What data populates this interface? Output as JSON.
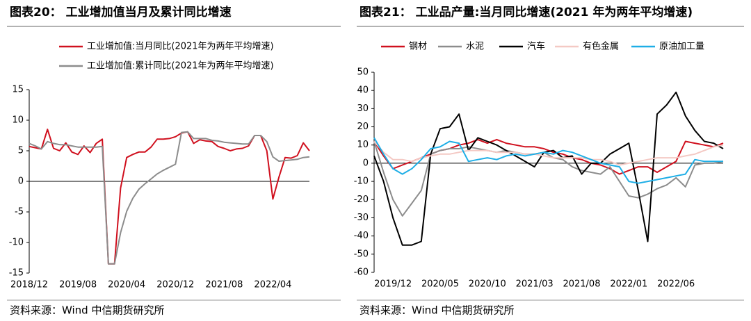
{
  "chart_data": [
    {
      "type": "line",
      "title": "图表20： 工业增加值当月及累计同比增速",
      "source": "资料来源：Wind 中信期货研究所",
      "legend": "top",
      "categories": [
        "2018/12",
        null,
        null,
        null,
        null,
        null,
        null,
        null,
        "2019/08",
        null,
        null,
        null,
        null,
        null,
        null,
        null,
        "2020/04",
        null,
        null,
        null,
        null,
        null,
        null,
        null,
        "2020/12",
        null,
        null,
        null,
        null,
        null,
        null,
        null,
        "2021/08",
        null,
        null,
        null,
        null,
        null,
        null,
        null,
        "2022/04",
        null,
        null,
        null,
        null,
        null,
        null
      ],
      "ylim": [
        -15,
        15
      ],
      "yticks": [
        -15,
        -10,
        -5,
        0,
        5,
        10,
        15
      ],
      "series": [
        {
          "name": "工业增加值:当月同比(2021年为两年平均增速)",
          "color": "#d0101e",
          "values": [
            5.7,
            5.5,
            5.3,
            8.5,
            5.4,
            5.0,
            6.3,
            4.8,
            4.4,
            5.8,
            4.7,
            6.2,
            6.9,
            -13.5,
            -13.5,
            -1.1,
            3.9,
            4.4,
            4.8,
            4.8,
            5.6,
            6.9,
            6.9,
            7.0,
            7.3,
            7.9,
            8.1,
            6.2,
            6.8,
            6.6,
            6.5,
            5.7,
            5.4,
            5.0,
            5.3,
            5.4,
            5.8,
            7.5,
            7.5,
            5.0,
            -2.9,
            0.7,
            3.9,
            3.8,
            4.2,
            6.3,
            5.0
          ]
        },
        {
          "name": "工业增加值:累计同比(2021年为两年平均增速)",
          "color": "#8c8c8c",
          "values": [
            6.2,
            5.8,
            5.3,
            6.5,
            6.2,
            6.0,
            6.0,
            5.8,
            5.6,
            5.6,
            5.6,
            5.6,
            5.7,
            -13.5,
            -13.5,
            -8.4,
            -4.9,
            -2.8,
            -1.3,
            -0.4,
            0.4,
            1.2,
            1.8,
            2.3,
            2.8,
            8.0,
            8.1,
            7.0,
            7.0,
            7.0,
            6.7,
            6.6,
            6.4,
            6.3,
            6.2,
            6.1,
            6.1,
            7.5,
            7.5,
            6.5,
            4.0,
            3.3,
            3.4,
            3.5,
            3.6,
            3.9,
            4.0
          ]
        }
      ]
    },
    {
      "type": "line",
      "title": "图表21： 工业品产量:当月同比增速(2021 年为两年平均增速)",
      "source": "资料来源：Wind 中信期货研究所",
      "legend": "top",
      "categories": [
        null,
        null,
        "2019/12",
        null,
        null,
        null,
        null,
        "2020/05",
        null,
        null,
        null,
        null,
        "2020/10",
        null,
        null,
        null,
        null,
        "2021/03",
        null,
        null,
        null,
        null,
        "2021/08",
        null,
        null,
        null,
        null,
        "2022/01",
        null,
        null,
        null,
        null,
        "2022/06",
        null,
        null,
        null,
        null,
        null
      ],
      "ylim": [
        -60,
        50
      ],
      "yticks": [
        -60,
        -50,
        -40,
        -30,
        -20,
        -10,
        0,
        10,
        20,
        30,
        40,
        50
      ],
      "series": [
        {
          "name": "钢材",
          "color": "#d0101e",
          "values": [
            12,
            4,
            -3,
            -1,
            1,
            3,
            5,
            7,
            8,
            10,
            11,
            13,
            11,
            13,
            11,
            10,
            9,
            9,
            8,
            6,
            5,
            3,
            2,
            0,
            -1,
            -3,
            -6,
            -4,
            -2,
            -2,
            -5,
            -2,
            1,
            12,
            11,
            10,
            9,
            11
          ]
        },
        {
          "name": "水泥",
          "color": "#8c8c8c",
          "values": [
            12,
            -5,
            -20,
            -29,
            -22,
            -15,
            5,
            7,
            8,
            8,
            9,
            8,
            7,
            6,
            7,
            6,
            5,
            5,
            6,
            3,
            2,
            -2,
            -4,
            -5,
            -6,
            -2,
            -10,
            -18,
            -19,
            -17,
            -14,
            -12,
            -8,
            -13,
            -1,
            0,
            0,
            1
          ]
        },
        {
          "name": "汽车",
          "color": "#000000",
          "values": [
            4,
            -10,
            -30,
            -45,
            -45,
            -43,
            5,
            19,
            20,
            27,
            7,
            14,
            12,
            10,
            7,
            4,
            1,
            -2,
            6,
            7,
            3,
            4,
            -6,
            0,
            0,
            5,
            8,
            11,
            -15,
            -43,
            27,
            32,
            39,
            26,
            18,
            12,
            11,
            8
          ]
        },
        {
          "name": "有色金属",
          "color": "#f4c9c4",
          "values": [
            12,
            6,
            2,
            2,
            1,
            3,
            4,
            5,
            5,
            6,
            7,
            7,
            7,
            6,
            6,
            6,
            5,
            5,
            4,
            3,
            3,
            3,
            3,
            2,
            2,
            1,
            -1,
            0,
            1,
            2,
            3,
            3,
            3,
            4,
            5,
            7,
            9,
            10
          ]
        },
        {
          "name": "原油加工量",
          "color": "#1eaee6",
          "values": [
            14,
            5,
            -3,
            -6,
            -3,
            2,
            8,
            9,
            12,
            11,
            1,
            2,
            3,
            2,
            4,
            5,
            4,
            5,
            6,
            5,
            7,
            6,
            4,
            2,
            0,
            -1,
            -2,
            -10,
            -11,
            -10,
            -9,
            -8,
            -7,
            -6,
            2,
            1,
            1,
            1
          ]
        }
      ]
    }
  ]
}
